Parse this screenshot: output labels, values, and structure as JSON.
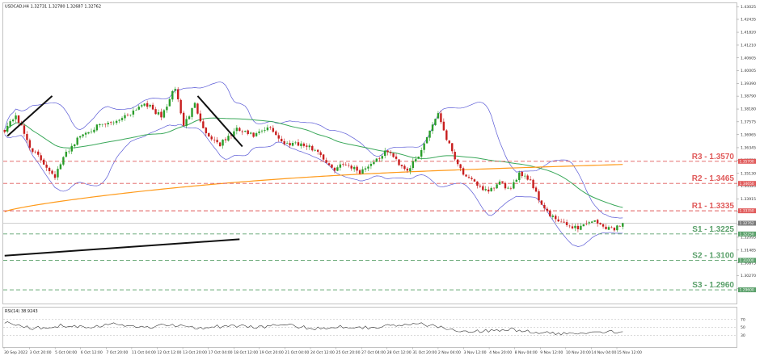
{
  "header": {
    "symbol_line": "USDCAD,H4  1.32731 1.32780 1.32687 1.32762",
    "rsi_label": "RSI(14) 38.9243"
  },
  "colors": {
    "bull": "#2a9d2a",
    "bear": "#c81e1e",
    "bollinger": "#5a5ad6",
    "ma_fast": "#3aa85a",
    "ma_slow": "#ff9a1a",
    "resistance": "#e05a5a",
    "support": "#5aa06a",
    "trendline": "#111111",
    "current": "#b0b0b0"
  },
  "chart_data": {
    "type": "candlestick",
    "title": "",
    "xlabel": "",
    "ylabel": "",
    "ylim": [
      1.2895,
      1.432
    ],
    "y_ticks": [
      "1.43025",
      "1.42435",
      "1.41820",
      "1.41210",
      "1.40605",
      "1.40005",
      "1.39390",
      "1.38790",
      "1.38180",
      "1.37575",
      "1.36965",
      "1.36345",
      "1.35750",
      "1.35130",
      "1.34520",
      "1.33915",
      "1.33305",
      "1.32700",
      "1.32095",
      "1.31485",
      "1.30875",
      "1.30270",
      "1.29650"
    ],
    "x_ticks": [
      "30 Sep 2022",
      "3 Oct 20:00",
      "5 Oct 04:00",
      "6 Oct 12:00",
      "7 Oct 20:00",
      "11 Oct 04:00",
      "12 Oct 12:00",
      "13 Oct 20:00",
      "17 Oct 04:00",
      "18 Oct 12:00",
      "19 Oct 20:00",
      "21 Oct 04:00",
      "24 Oct 12:00",
      "25 Oct 20:00",
      "27 Oct 04:00",
      "28 Oct 12:00",
      "31 Oct 20:00",
      "2 Nov 04:00",
      "3 Nov 12:00",
      "4 Nov 20:00",
      "8 Nov 04:00",
      "9 Nov 12:00",
      "10 Nov 20:00",
      "14 Nov 04:00",
      "15 Nov 12:00"
    ],
    "levels": [
      {
        "name": "R3",
        "label": "R3 - 1.3570",
        "value": 1.357,
        "tag": "1.35700",
        "kind": "resistance"
      },
      {
        "name": "R2",
        "label": "R2 - 1.3465",
        "value": 1.3465,
        "tag": "1.34650",
        "kind": "resistance"
      },
      {
        "name": "R1",
        "label": "R1 - 1.3335",
        "value": 1.3335,
        "tag": "1.33350",
        "kind": "resistance"
      },
      {
        "name": "S1",
        "label": "S1 - 1.3225",
        "value": 1.3225,
        "tag": "1.32250",
        "kind": "support"
      },
      {
        "name": "S2",
        "label": "S2 - 1.3100",
        "value": 1.31,
        "tag": "1.31000",
        "kind": "support"
      },
      {
        "name": "S3",
        "label": "S3 - 1.2960",
        "value": 1.296,
        "tag": "1.29600",
        "kind": "support"
      }
    ],
    "current_price": {
      "value": 1.32762,
      "tag": "1.32762"
    },
    "close_anchors": [
      [
        0,
        1.372
      ],
      [
        4,
        1.379
      ],
      [
        9,
        1.364
      ],
      [
        14,
        1.356
      ],
      [
        18,
        1.35
      ],
      [
        22,
        1.361
      ],
      [
        27,
        1.369
      ],
      [
        32,
        1.373
      ],
      [
        38,
        1.375
      ],
      [
        45,
        1.38
      ],
      [
        50,
        1.385
      ],
      [
        56,
        1.378
      ],
      [
        61,
        1.392
      ],
      [
        64,
        1.374
      ],
      [
        68,
        1.384
      ],
      [
        72,
        1.37
      ],
      [
        77,
        1.365
      ],
      [
        83,
        1.372
      ],
      [
        89,
        1.369
      ],
      [
        95,
        1.373
      ],
      [
        100,
        1.365
      ],
      [
        104,
        1.366
      ],
      [
        108,
        1.364
      ],
      [
        112,
        1.362
      ],
      [
        117,
        1.353
      ],
      [
        122,
        1.356
      ],
      [
        127,
        1.352
      ],
      [
        132,
        1.357
      ],
      [
        137,
        1.362
      ],
      [
        141,
        1.356
      ],
      [
        144,
        1.353
      ],
      [
        148,
        1.359
      ],
      [
        152,
        1.372
      ],
      [
        155,
        1.38
      ],
      [
        158,
        1.368
      ],
      [
        162,
        1.356
      ],
      [
        165,
        1.349
      ],
      [
        169,
        1.346
      ],
      [
        173,
        1.342
      ],
      [
        177,
        1.347
      ],
      [
        181,
        1.343
      ],
      [
        184,
        1.352
      ],
      [
        188,
        1.348
      ],
      [
        191,
        1.339
      ],
      [
        195,
        1.331
      ],
      [
        200,
        1.327
      ],
      [
        205,
        1.3255
      ],
      [
        210,
        1.329
      ],
      [
        214,
        1.326
      ],
      [
        218,
        1.325
      ],
      [
        221,
        1.3276
      ]
    ],
    "rsi": {
      "period": 14,
      "current": 38.9243,
      "levels": [
        70,
        50,
        30
      ],
      "anchors": [
        [
          0,
          62
        ],
        [
          10,
          48
        ],
        [
          20,
          55
        ],
        [
          30,
          52
        ],
        [
          40,
          58
        ],
        [
          50,
          50
        ],
        [
          60,
          57
        ],
        [
          70,
          49
        ],
        [
          80,
          54
        ],
        [
          90,
          51
        ],
        [
          100,
          56
        ],
        [
          110,
          47
        ],
        [
          120,
          52
        ],
        [
          130,
          50
        ],
        [
          140,
          55
        ],
        [
          150,
          58
        ],
        [
          160,
          44
        ],
        [
          170,
          40
        ],
        [
          180,
          45
        ],
        [
          190,
          37
        ],
        [
          200,
          33
        ],
        [
          210,
          40
        ],
        [
          221,
          39
        ]
      ]
    },
    "trendlines": [
      {
        "name": "upper-left-trendline",
        "points": [
          [
            1,
            1.369
          ],
          [
            17,
            1.388
          ]
        ]
      },
      {
        "name": "mid-downtrend-line",
        "points": [
          [
            69,
            1.388
          ],
          [
            85,
            1.364
          ]
        ]
      },
      {
        "name": "lower-uptrend-line",
        "points": [
          [
            0,
            1.3122
          ],
          [
            84,
            1.32
          ]
        ]
      }
    ]
  }
}
